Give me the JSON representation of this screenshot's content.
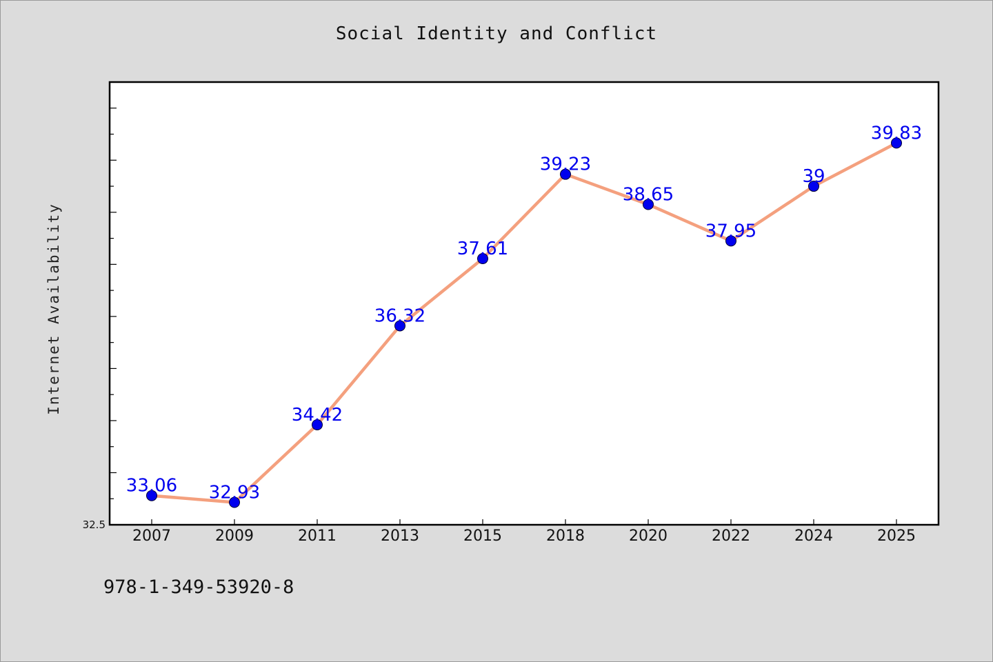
{
  "chart_data": {
    "type": "line",
    "title": "Social Identity and Conflict",
    "xlabel": "",
    "ylabel": "Internet Availability",
    "categories": [
      "2007",
      "2009",
      "2011",
      "2013",
      "2015",
      "2018",
      "2020",
      "2022",
      "2024",
      "2025"
    ],
    "series": [
      {
        "values": [
          33.06,
          32.93,
          34.42,
          36.32,
          37.61,
          39.23,
          38.65,
          37.95,
          39,
          39.83
        ],
        "labels": [
          "33.06",
          "32.93",
          "34.42",
          "36.32",
          "37.61",
          "39.23",
          "38.65",
          "37.95",
          "39",
          "39.83"
        ]
      }
    ],
    "ylim": [
      32.5,
      41.0
    ],
    "yticks_labeled": [
      "32.5"
    ],
    "grid": false,
    "legend": "none",
    "colors": {
      "line": "#f4a07e",
      "marker": "#0000ee",
      "data_label": "#0000ee",
      "background": "#dcdcdc",
      "plot_background": "#ffffff"
    }
  },
  "footnote": "978-1-349-53920-8"
}
